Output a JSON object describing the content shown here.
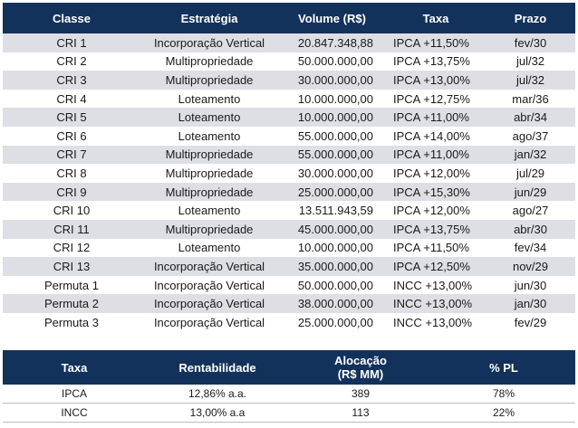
{
  "main_table": {
    "headers": {
      "classe": "Classe",
      "estrategia": "Estratégia",
      "volume": "Volume (R$)",
      "taxa": "Taxa",
      "prazo": "Prazo"
    },
    "rows": [
      {
        "classe": "CRI 1",
        "estrategia": "Incorporação Vertical",
        "volume": "20.847.348,88",
        "taxa": "IPCA +11,50%",
        "prazo": "fev/30"
      },
      {
        "classe": "CRI 2",
        "estrategia": "Multipropriedade",
        "volume": "50.000.000,00",
        "taxa": "IPCA +13,75%",
        "prazo": "jul/32"
      },
      {
        "classe": "CRI 3",
        "estrategia": "Multipropriedade",
        "volume": "30.000.000,00",
        "taxa": "IPCA +13,00%",
        "prazo": "jul/32"
      },
      {
        "classe": "CRI 4",
        "estrategia": "Loteamento",
        "volume": "10.000.000,00",
        "taxa": "IPCA +12,75%",
        "prazo": "mar/36"
      },
      {
        "classe": "CRI 5",
        "estrategia": "Loteamento",
        "volume": "10.000.000,00",
        "taxa": "IPCA +11,00%",
        "prazo": "abr/34"
      },
      {
        "classe": "CRI 6",
        "estrategia": "Loteamento",
        "volume": "55.000.000,00",
        "taxa": "IPCA +14,00%",
        "prazo": "ago/37"
      },
      {
        "classe": "CRI 7",
        "estrategia": "Multipropriedade",
        "volume": "55.000.000,00",
        "taxa": "IPCA +11,00%",
        "prazo": "jan/32"
      },
      {
        "classe": "CRI 8",
        "estrategia": "Multipropriedade",
        "volume": "30.000.000,00",
        "taxa": "IPCA +12,00%",
        "prazo": "jul/29"
      },
      {
        "classe": "CRI 9",
        "estrategia": "Multipropriedade",
        "volume": "25.000.000,00",
        "taxa": "IPCA +15,30%",
        "prazo": "jun/29"
      },
      {
        "classe": "CRI 10",
        "estrategia": "Loteamento",
        "volume": "13.511.943,59",
        "taxa": "IPCA +12,00%",
        "prazo": "ago/27"
      },
      {
        "classe": "CRI 11",
        "estrategia": "Multipropriedade",
        "volume": "45.000.000,00",
        "taxa": "IPCA +13,75%",
        "prazo": "abr/30"
      },
      {
        "classe": "CRI 12",
        "estrategia": "Loteamento",
        "volume": "10.000.000,00",
        "taxa": "IPCA +11,50%",
        "prazo": "fev/34"
      },
      {
        "classe": "CRI 13",
        "estrategia": "Incorporação Vertical",
        "volume": "35.000.000,00",
        "taxa": "IPCA +12,50%",
        "prazo": "nov/29"
      },
      {
        "classe": "Permuta 1",
        "estrategia": "Incorporação Vertical",
        "volume": "50.000.000,00",
        "taxa": "INCC +13,00%",
        "prazo": "jun/30"
      },
      {
        "classe": "Permuta 2",
        "estrategia": "Incorporação Vertical",
        "volume": "38.000.000,00",
        "taxa": "INCC +13,00%",
        "prazo": "jan/30"
      },
      {
        "classe": "Permuta 3",
        "estrategia": "Incorporação Vertical",
        "volume": "25.000.000,00",
        "taxa": "INCC +13,00%",
        "prazo": "fev/29"
      }
    ]
  },
  "summary_table": {
    "headers": {
      "taxa": "Taxa",
      "rentabilidade": "Rentabilidade",
      "alocacao_line1": "Alocação",
      "alocacao_line2": "(R$ MM)",
      "pl": "% PL"
    },
    "rows": [
      {
        "taxa": "IPCA",
        "rentabilidade": "12,86% a.a.",
        "alocacao": "389",
        "pl": "78%"
      },
      {
        "taxa": "INCC",
        "rentabilidade": "13,00% a.a",
        "alocacao": "113",
        "pl": "22%"
      }
    ]
  },
  "colors": {
    "header_bg": "#13325b",
    "header_text": "#ffffff",
    "stripe": "#dedfe4"
  }
}
